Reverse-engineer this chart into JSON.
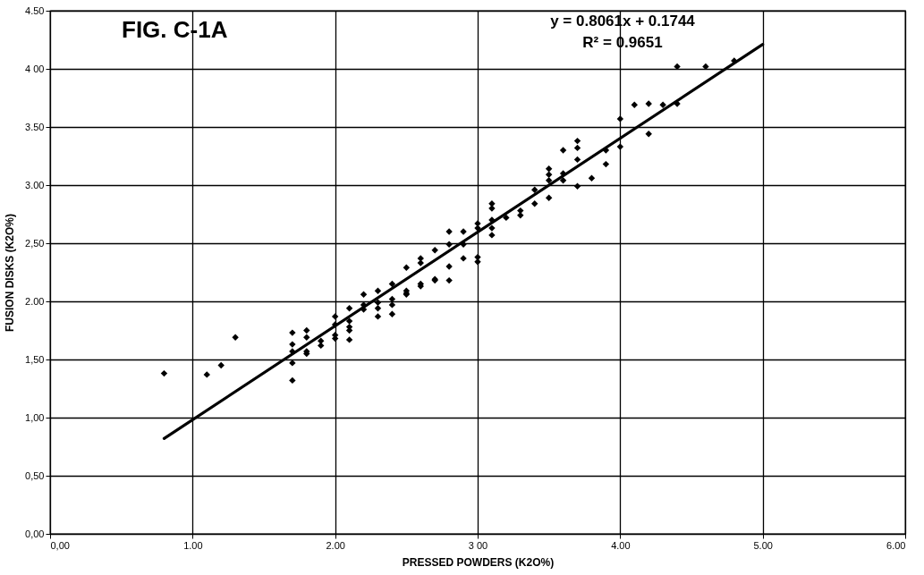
{
  "chart_data": {
    "type": "scatter",
    "title": "FIG. C-1A",
    "xlabel": "PRESSED POWDERS (K2O%)",
    "ylabel": "FUSION DISKS (K2O%)",
    "annotations": [
      "y = 0.8061x + 0.1744",
      "R² = 0.9651"
    ],
    "xlim": [
      0,
      6
    ],
    "ylim": [
      0,
      4.5
    ],
    "xticks": [
      {
        "value": 0,
        "label": "0,00"
      },
      {
        "value": 1,
        "label": "1.00"
      },
      {
        "value": 2,
        "label": "2.00"
      },
      {
        "value": 3,
        "label": "3 00"
      },
      {
        "value": 4,
        "label": "4.00"
      },
      {
        "value": 5,
        "label": "5.00"
      },
      {
        "value": 6,
        "label": "6.00"
      }
    ],
    "yticks": [
      {
        "value": 0,
        "label": "0,00"
      },
      {
        "value": 0.5,
        "label": "0,50"
      },
      {
        "value": 1,
        "label": "1,00"
      },
      {
        "value": 1.5,
        "label": "1,50"
      },
      {
        "value": 2,
        "label": "2.00"
      },
      {
        "value": 2.5,
        "label": "2,50"
      },
      {
        "value": 3,
        "label": "3.00"
      },
      {
        "value": 3.5,
        "label": "3.50"
      },
      {
        "value": 4,
        "label": "4 00"
      },
      {
        "value": 4.5,
        "label": "4.50"
      }
    ],
    "grid": true,
    "series": [
      {
        "color": "#000000",
        "marker": "diamond",
        "x": [
          0.8,
          1.1,
          1.2,
          1.3,
          1.7,
          1.7,
          1.7,
          1.7,
          1.7,
          1.8,
          1.8,
          1.8,
          1.8,
          1.9,
          1.9,
          2.0,
          2.0,
          2.0,
          2.0,
          2.1,
          2.1,
          2.1,
          2.1,
          2.1,
          2.2,
          2.2,
          2.2,
          2.3,
          2.3,
          2.3,
          2.3,
          2.4,
          2.4,
          2.4,
          2.4,
          2.5,
          2.5,
          2.5,
          2.5,
          2.6,
          2.6,
          2.6,
          2.6,
          2.7,
          2.7,
          2.7,
          2.8,
          2.8,
          2.8,
          2.8,
          2.9,
          2.9,
          2.9,
          3.0,
          3.0,
          3.0,
          3.0,
          3.1,
          3.1,
          3.1,
          3.1,
          3.1,
          3.2,
          3.3,
          3.3,
          3.4,
          3.4,
          3.5,
          3.5,
          3.5,
          3.5,
          3.6,
          3.6,
          3.6,
          3.7,
          3.7,
          3.7,
          3.7,
          3.8,
          3.9,
          3.9,
          4.0,
          4.0,
          4.1,
          4.2,
          4.2,
          4.3,
          4.4,
          4.4,
          4.6,
          4.8
        ],
        "values": [
          1.38,
          1.37,
          1.45,
          1.69,
          1.73,
          1.63,
          1.57,
          1.47,
          1.32,
          1.75,
          1.69,
          1.57,
          1.55,
          1.66,
          1.62,
          1.87,
          1.8,
          1.71,
          1.68,
          1.94,
          1.83,
          1.78,
          1.75,
          1.67,
          2.06,
          1.97,
          1.93,
          2.09,
          1.99,
          1.94,
          1.87,
          2.15,
          2.02,
          1.97,
          1.89,
          2.29,
          2.09,
          2.06,
          2.07,
          2.37,
          2.33,
          2.15,
          2.13,
          2.44,
          2.19,
          2.18,
          2.6,
          2.49,
          2.3,
          2.18,
          2.6,
          2.49,
          2.37,
          2.67,
          2.63,
          2.38,
          2.34,
          2.84,
          2.8,
          2.7,
          2.63,
          2.57,
          2.72,
          2.78,
          2.74,
          2.96,
          2.84,
          3.14,
          3.09,
          3.04,
          2.89,
          3.3,
          3.1,
          3.04,
          3.38,
          3.32,
          3.22,
          2.99,
          3.06,
          3.18,
          3.3,
          3.57,
          3.33,
          3.69,
          3.7,
          3.44,
          3.69,
          3.7,
          4.02,
          4.02,
          4.07
        ]
      },
      {
        "type": "line",
        "color": "#000000",
        "x": [
          0.8,
          5.0
        ],
        "values": [
          0.82,
          4.21
        ]
      }
    ]
  }
}
